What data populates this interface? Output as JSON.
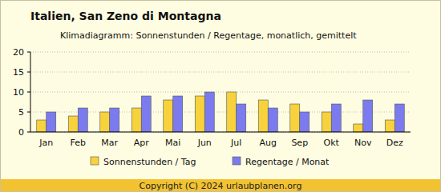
{
  "chart_data": {
    "type": "bar",
    "title": "Italien, San Zeno di Montagna",
    "subtitle": "Klimadiagramm: Sonnenstunden / Regentage, monatlich, gemittelt",
    "categories": [
      "Jan",
      "Feb",
      "Mar",
      "Apr",
      "Mai",
      "Jun",
      "Jul",
      "Aug",
      "Sep",
      "Okt",
      "Nov",
      "Dez"
    ],
    "series": [
      {
        "name": "Sonnenstunden / Tag",
        "color": "#f7d23c",
        "values": [
          3,
          4,
          5,
          6,
          8,
          9,
          10,
          8,
          7,
          5,
          2,
          3
        ]
      },
      {
        "name": "Regentage / Monat",
        "color": "#7b7bef",
        "values": [
          5,
          6,
          6,
          9,
          9,
          10,
          7,
          6,
          5,
          7,
          8,
          7
        ]
      }
    ],
    "ylim": [
      0,
      20
    ],
    "yticks": [
      0,
      5,
      10,
      15,
      20
    ],
    "grid": true,
    "legend": "bottom",
    "annotations": [
      "Copyright (C) 2024 urlaubplanen.org"
    ]
  }
}
